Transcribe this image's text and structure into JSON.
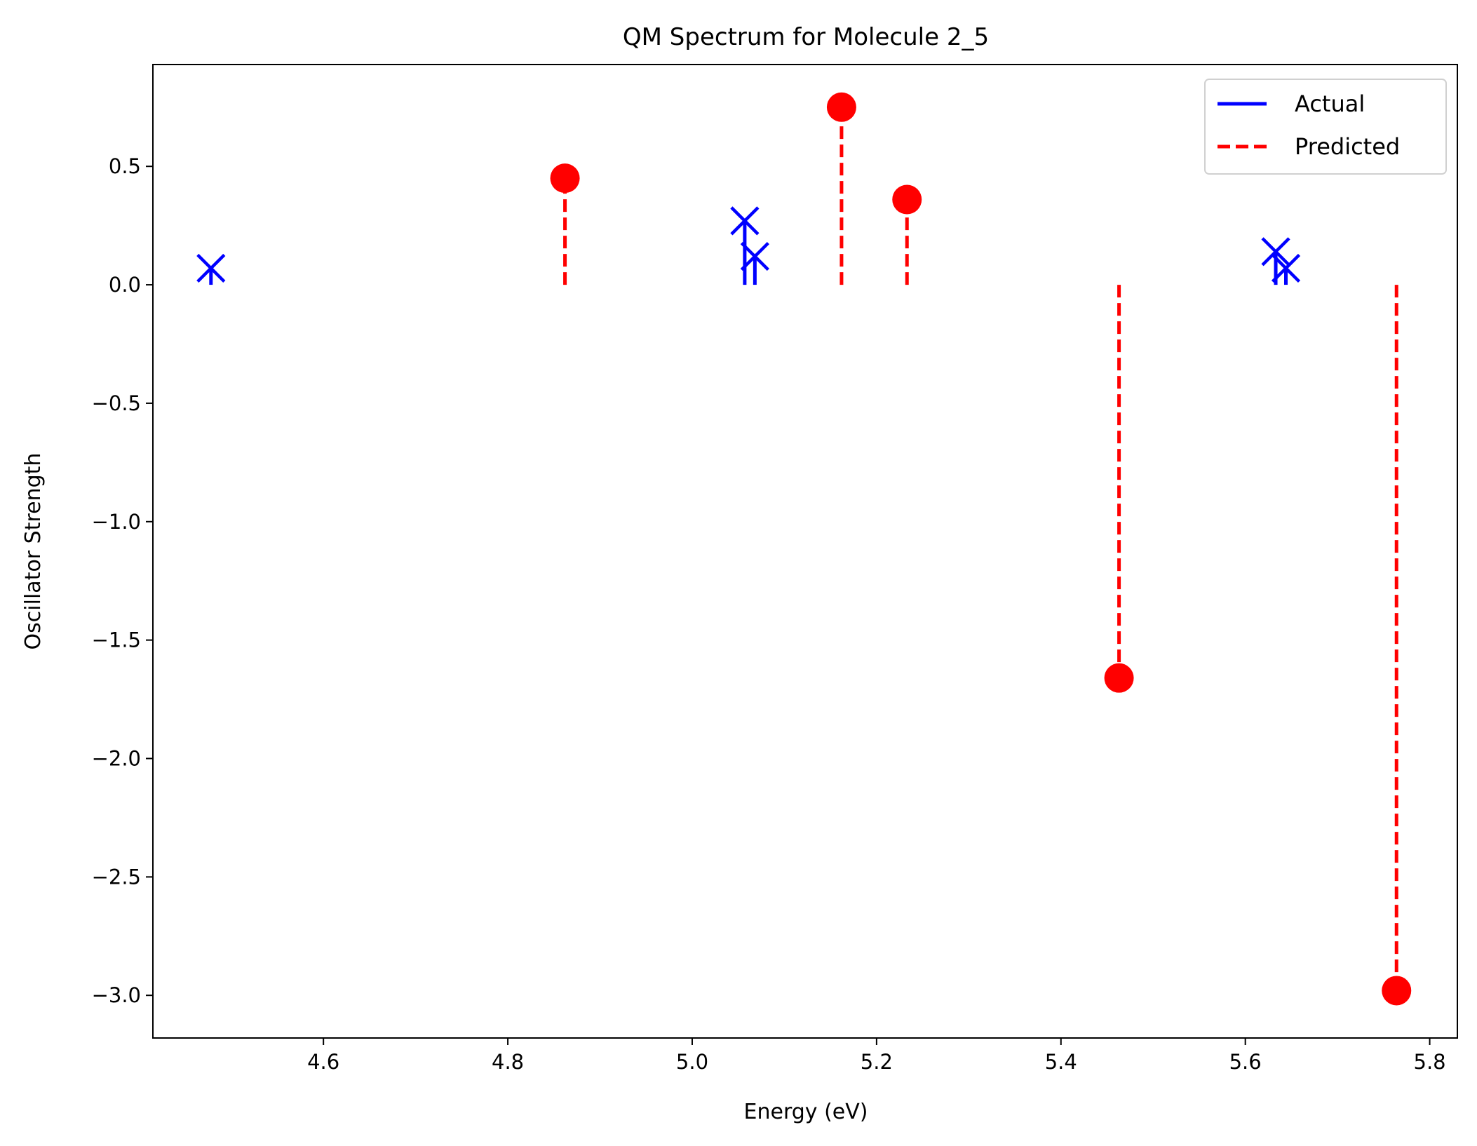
{
  "chart_data": {
    "type": "scatter",
    "title": "QM Spectrum for Molecule 2_5",
    "xlabel": "Energy (eV)",
    "ylabel": "Oscillator Strength",
    "xlim": [
      4.415,
      5.83
    ],
    "ylim": [
      -3.18,
      0.93
    ],
    "xticks": [
      4.6,
      4.8,
      5.0,
      5.2,
      5.4,
      5.6,
      5.8
    ],
    "xtick_labels": [
      "4.6",
      "4.8",
      "5.0",
      "5.2",
      "5.4",
      "5.6",
      "5.8"
    ],
    "yticks": [
      0.5,
      0.0,
      -0.5,
      -1.0,
      -1.5,
      -2.0,
      -2.5,
      -3.0
    ],
    "ytick_labels": [
      "0.5",
      "0.0",
      "−0.5",
      "−1.0",
      "−1.5",
      "−2.0",
      "−2.5",
      "−3.0"
    ],
    "grid": false,
    "legend_position": "top-right",
    "series": [
      {
        "name": "Actual",
        "color": "#0000ff",
        "line_style": "solid",
        "marker": "x",
        "x": [
          4.478,
          5.057,
          5.068,
          5.633,
          5.644
        ],
        "y": [
          0.07,
          0.27,
          0.12,
          0.14,
          0.07
        ]
      },
      {
        "name": "Predicted",
        "color": "#ff0000",
        "line_style": "dashed",
        "marker": "circle",
        "x": [
          4.862,
          5.162,
          5.233,
          5.463,
          5.764
        ],
        "y": [
          0.45,
          0.75,
          0.36,
          -1.66,
          -2.98
        ]
      }
    ]
  }
}
